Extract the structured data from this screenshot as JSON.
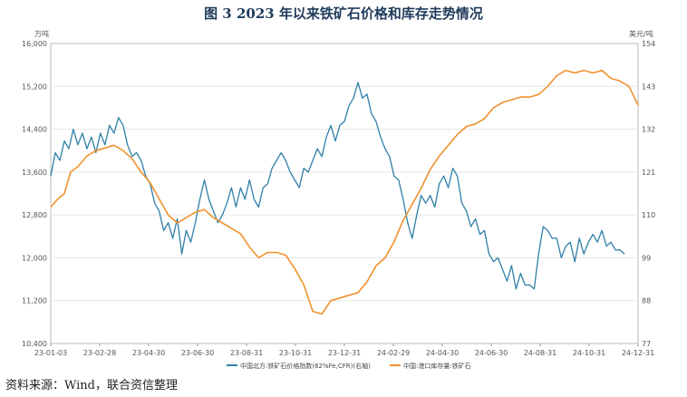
{
  "title": "图 3    2023 年以来铁矿石价格和库存走势情况",
  "source": "资料来源：Wind，联合资信整理",
  "chart_data": {
    "type": "line",
    "title": "图 3    2023 年以来铁矿石价格和库存走势情况",
    "x_start": "2023-01-03",
    "x_end": "2024-12-31",
    "x_tick_labels": [
      "23-01-03",
      "23-02-28",
      "23-04-30",
      "23-06-30",
      "23-08-31",
      "23-10-31",
      "23-12-31",
      "24-02-29",
      "24-04-30",
      "24-06-30",
      "24-08-31",
      "24-10-31",
      "24-12-31"
    ],
    "left_axis": {
      "unit": "万吨",
      "ylim": [
        10400,
        16000
      ],
      "ticks": [
        10400,
        11200,
        12000,
        12800,
        13600,
        14400,
        15200,
        16000
      ]
    },
    "right_axis": {
      "unit": "美元/吨",
      "ylim": [
        77,
        154
      ],
      "ticks": [
        77,
        88,
        99,
        110,
        121,
        132,
        143,
        154
      ]
    },
    "series": [
      {
        "name": "中国北方:铁矿石价格指数(62%Fe,CFR)(右轴)",
        "axis": "right",
        "color": "#2e7fa6",
        "points": [
          [
            0,
            120
          ],
          [
            0.5,
            126
          ],
          [
            1,
            124
          ],
          [
            1.5,
            129
          ],
          [
            2,
            127
          ],
          [
            2.5,
            132
          ],
          [
            3,
            128
          ],
          [
            3.5,
            131
          ],
          [
            4,
            127
          ],
          [
            4.5,
            130
          ],
          [
            5,
            126
          ],
          [
            5.5,
            131
          ],
          [
            6,
            128
          ],
          [
            6.5,
            133
          ],
          [
            7,
            131
          ],
          [
            7.5,
            135
          ],
          [
            8,
            133
          ],
          [
            8.5,
            128
          ],
          [
            9,
            125
          ],
          [
            9.5,
            126
          ],
          [
            10,
            124
          ],
          [
            10.5,
            120
          ],
          [
            11,
            118
          ],
          [
            11.5,
            113
          ],
          [
            12,
            111
          ],
          [
            12.5,
            106
          ],
          [
            13,
            108
          ],
          [
            13.5,
            104
          ],
          [
            14,
            109
          ],
          [
            14.5,
            100
          ],
          [
            15,
            106
          ],
          [
            15.5,
            103
          ],
          [
            16,
            108
          ],
          [
            16.5,
            114
          ],
          [
            17,
            119
          ],
          [
            17.5,
            114
          ],
          [
            18,
            111
          ],
          [
            18.5,
            108
          ],
          [
            19,
            110
          ],
          [
            19.5,
            113
          ],
          [
            20,
            117
          ],
          [
            20.5,
            112
          ],
          [
            21,
            117
          ],
          [
            21.5,
            114
          ],
          [
            22,
            119
          ],
          [
            22.5,
            114
          ],
          [
            23,
            112
          ],
          [
            23.5,
            117
          ],
          [
            24,
            118
          ],
          [
            24.5,
            122
          ],
          [
            25,
            124
          ],
          [
            25.5,
            126
          ],
          [
            26,
            124
          ],
          [
            26.5,
            121
          ],
          [
            27,
            119
          ],
          [
            27.5,
            117
          ],
          [
            28,
            122
          ],
          [
            28.5,
            121
          ],
          [
            29,
            124
          ],
          [
            29.5,
            127
          ],
          [
            30,
            125
          ],
          [
            30.5,
            130
          ],
          [
            31,
            133
          ],
          [
            31.5,
            129
          ],
          [
            32,
            133
          ],
          [
            32.5,
            134
          ],
          [
            33,
            138
          ],
          [
            33.5,
            140
          ],
          [
            34,
            144
          ],
          [
            34.5,
            140
          ],
          [
            35,
            141
          ],
          [
            35.5,
            136
          ],
          [
            36,
            134
          ],
          [
            36.5,
            130
          ],
          [
            37,
            127
          ],
          [
            37.5,
            125
          ],
          [
            38,
            120
          ],
          [
            38.5,
            119
          ],
          [
            39,
            114
          ],
          [
            39.5,
            108
          ],
          [
            40,
            104
          ],
          [
            40.5,
            110
          ],
          [
            41,
            115
          ],
          [
            41.5,
            113
          ],
          [
            42,
            115
          ],
          [
            42.5,
            112
          ],
          [
            43,
            118
          ],
          [
            43.5,
            120
          ],
          [
            44,
            117
          ],
          [
            44.5,
            122
          ],
          [
            45,
            120
          ],
          [
            45.5,
            113
          ],
          [
            46,
            111
          ],
          [
            46.5,
            107
          ],
          [
            47,
            109
          ],
          [
            47.5,
            105
          ],
          [
            48,
            106
          ],
          [
            48.5,
            100
          ],
          [
            49,
            98
          ],
          [
            49.5,
            99
          ],
          [
            50,
            96
          ],
          [
            50.5,
            93
          ],
          [
            51,
            97
          ],
          [
            51.5,
            91
          ],
          [
            52,
            95
          ],
          [
            52.5,
            92
          ],
          [
            53,
            92
          ],
          [
            53.5,
            91
          ],
          [
            54,
            100
          ],
          [
            54.5,
            107
          ],
          [
            55,
            106
          ],
          [
            55.5,
            104
          ],
          [
            56,
            104
          ],
          [
            56.5,
            99
          ],
          [
            57,
            102
          ],
          [
            57.5,
            103
          ],
          [
            58,
            98
          ],
          [
            58.5,
            104
          ],
          [
            59,
            100
          ],
          [
            59.5,
            103
          ],
          [
            60,
            105
          ],
          [
            60.5,
            103
          ],
          [
            61,
            106
          ],
          [
            61.5,
            102
          ],
          [
            62,
            103
          ],
          [
            62.5,
            101
          ],
          [
            63,
            101
          ],
          [
            63.5,
            100
          ]
        ]
      },
      {
        "name": "中国:港口库存量:铁矿石",
        "axis": "left",
        "color": "#f0922e",
        "points": [
          [
            0,
            12950
          ],
          [
            0.8,
            13100
          ],
          [
            1.5,
            13200
          ],
          [
            2.2,
            13600
          ],
          [
            3,
            13700
          ],
          [
            4,
            13900
          ],
          [
            5,
            14000
          ],
          [
            6,
            14050
          ],
          [
            7,
            14100
          ],
          [
            8,
            14000
          ],
          [
            9,
            13850
          ],
          [
            10,
            13600
          ],
          [
            11,
            13400
          ],
          [
            12,
            13100
          ],
          [
            13,
            12800
          ],
          [
            14,
            12650
          ],
          [
            15,
            12750
          ],
          [
            16,
            12850
          ],
          [
            17,
            12900
          ],
          [
            18,
            12750
          ],
          [
            19,
            12650
          ],
          [
            20,
            12550
          ],
          [
            21,
            12450
          ],
          [
            22,
            12200
          ],
          [
            23,
            12000
          ],
          [
            24,
            12100
          ],
          [
            25,
            12100
          ],
          [
            26,
            12050
          ],
          [
            27,
            11800
          ],
          [
            28,
            11500
          ],
          [
            29,
            11000
          ],
          [
            30,
            10950
          ],
          [
            31,
            11200
          ],
          [
            32,
            11250
          ],
          [
            33,
            11300
          ],
          [
            34,
            11350
          ],
          [
            35,
            11550
          ],
          [
            36,
            11850
          ],
          [
            37,
            12000
          ],
          [
            38,
            12300
          ],
          [
            39,
            12700
          ],
          [
            40,
            13000
          ],
          [
            41,
            13300
          ],
          [
            42,
            13650
          ],
          [
            43,
            13900
          ],
          [
            44,
            14100
          ],
          [
            45,
            14300
          ],
          [
            46,
            14450
          ],
          [
            47,
            14500
          ],
          [
            48,
            14600
          ],
          [
            49,
            14800
          ],
          [
            50,
            14900
          ],
          [
            51,
            14950
          ],
          [
            52,
            15000
          ],
          [
            53,
            15000
          ],
          [
            54,
            15050
          ],
          [
            55,
            15200
          ],
          [
            56,
            15400
          ],
          [
            57,
            15500
          ],
          [
            58,
            15450
          ],
          [
            59,
            15500
          ],
          [
            60,
            15450
          ],
          [
            61,
            15500
          ],
          [
            62,
            15350
          ],
          [
            63,
            15300
          ],
          [
            64,
            15200
          ],
          [
            65,
            14850
          ]
        ]
      }
    ]
  }
}
